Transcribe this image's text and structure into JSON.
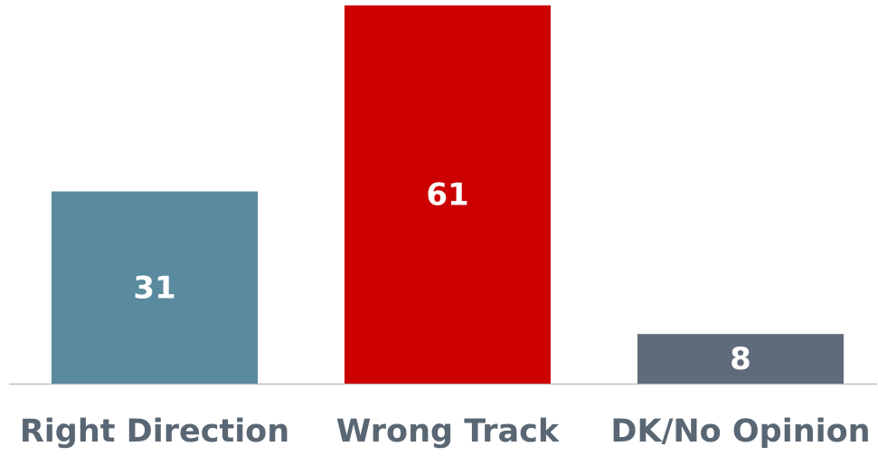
{
  "chart_data": {
    "type": "bar",
    "categories": [
      "Right Direction",
      "Wrong Track",
      "DK/No Opinion"
    ],
    "values": [
      31,
      61,
      8
    ],
    "colors": [
      "#5a8a9e",
      "#cc0000",
      "#5f6b7a"
    ]
  }
}
